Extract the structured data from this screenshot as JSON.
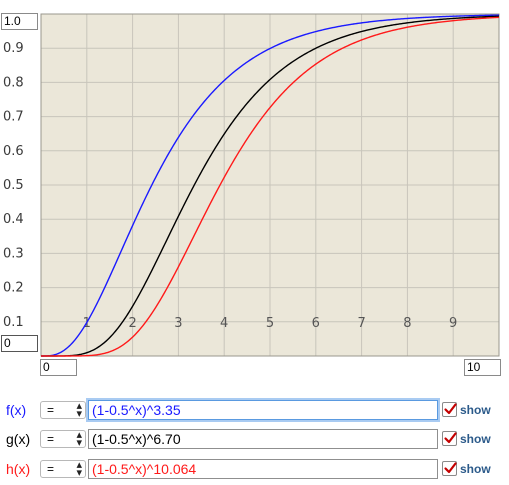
{
  "chart_data": {
    "type": "line",
    "xlim": [
      0,
      10
    ],
    "ylim": [
      0,
      1
    ],
    "x_ticks": [
      "1",
      "2",
      "3",
      "4",
      "5",
      "6",
      "7",
      "8",
      "9"
    ],
    "y_ticks": [
      "0.1",
      "0.2",
      "0.3",
      "0.4",
      "0.5",
      "0.6",
      "0.7",
      "0.8",
      "0.9"
    ],
    "grid": true,
    "background": "#ebe7d9",
    "grid_color": "#c8c5bb",
    "series": [
      {
        "name": "f(x)",
        "base": 0.5,
        "exponent": 3.35,
        "color": "#1a1aff"
      },
      {
        "name": "g(x)",
        "base": 0.5,
        "exponent": 6.7,
        "color": "#000000"
      },
      {
        "name": "h(x)",
        "base": 0.5,
        "exponent": 10.064,
        "color": "#ff1a1a"
      }
    ]
  },
  "axes": {
    "y_max": "1.0",
    "y_min": "0",
    "x_min": "0",
    "x_max": "10"
  },
  "functions": [
    {
      "label": "f(x)",
      "operator": "=",
      "expression": "(1-0.5^x)^3.35",
      "show_label": "show",
      "checked": true,
      "color": "#1a1aff",
      "focused": true
    },
    {
      "label": "g(x)",
      "operator": "=",
      "expression": "(1-0.5^x)^6.70",
      "show_label": "show",
      "checked": true,
      "color": "#000000",
      "focused": false
    },
    {
      "label": "h(x)",
      "operator": "=",
      "expression": "(1-0.5^x)^10.064",
      "show_label": "show",
      "checked": true,
      "color": "#ff1a1a",
      "focused": false
    }
  ],
  "icons": {
    "select_arrows": "updown-arrows-icon",
    "checkbox": "checkmark-icon"
  }
}
